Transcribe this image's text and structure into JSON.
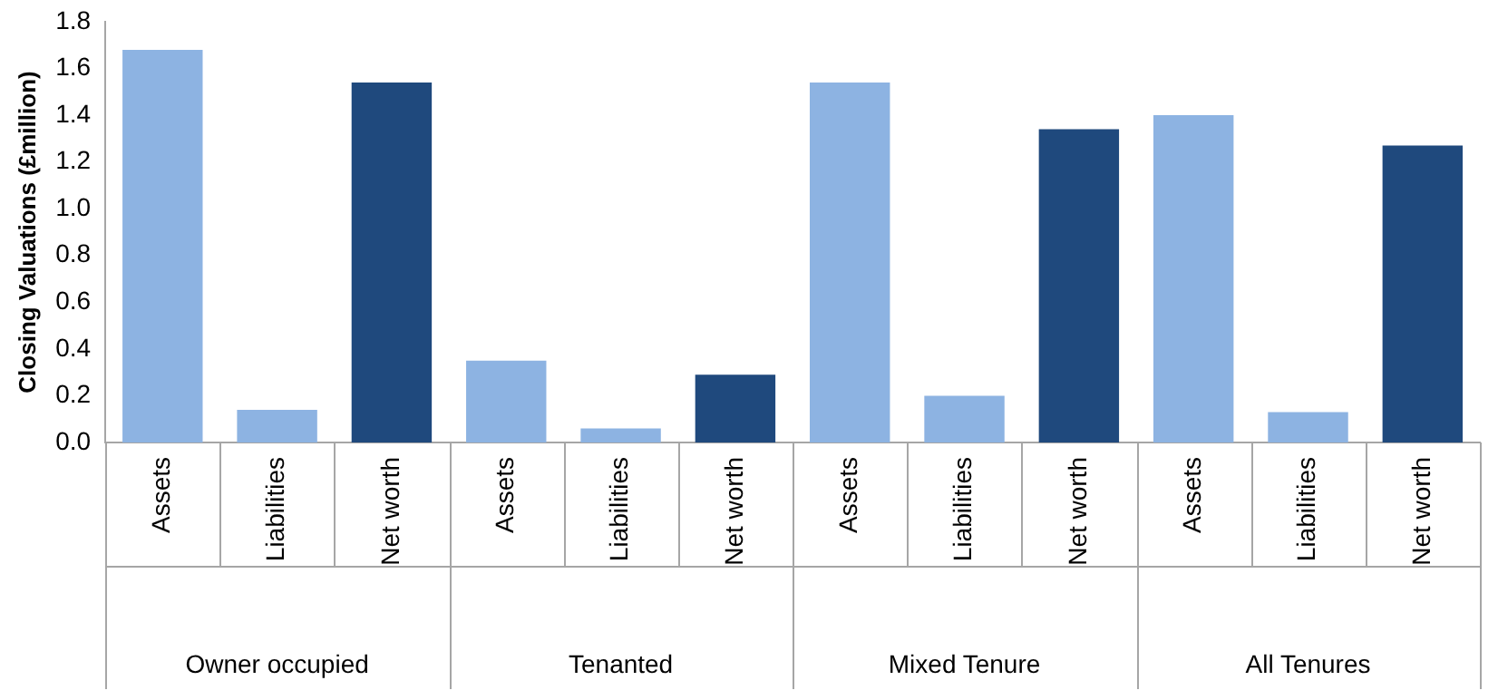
{
  "chart_data": {
    "type": "bar",
    "ylabel": "Closing Valuations (£million)",
    "categories": [
      "Assets",
      "Liabilities",
      "Net worth",
      "Assets",
      "Liabilities",
      "Net worth",
      "Assets",
      "Liabilities",
      "Net worth",
      "Assets",
      "Liabilities",
      "Net worth"
    ],
    "values": [
      1.68,
      0.14,
      1.54,
      0.35,
      0.06,
      0.29,
      1.54,
      0.2,
      1.34,
      1.4,
      0.13,
      1.27
    ],
    "colors": [
      "#8db3e2",
      "#8db3e2",
      "#1f497d",
      "#8db3e2",
      "#8db3e2",
      "#1f497d",
      "#8db3e2",
      "#8db3e2",
      "#1f497d",
      "#8db3e2",
      "#8db3e2",
      "#1f497d"
    ],
    "annotations": [
      "Owner occupied",
      "Tenanted",
      "Mixed Tenure",
      "All Tenures"
    ],
    "ylim": [
      0,
      1.8
    ],
    "yticks": [
      {
        "value": 0,
        "label": "0.0"
      },
      {
        "value": 0.2,
        "label": "0.2"
      },
      {
        "value": 0.4,
        "label": "0.4"
      },
      {
        "value": 0.6,
        "label": "0.6"
      },
      {
        "value": 0.8,
        "label": "0.8"
      },
      {
        "value": 1,
        "label": "1.0"
      },
      {
        "value": 1.2,
        "label": "1.2"
      },
      {
        "value": 1.4,
        "label": "1.4"
      },
      {
        "value": 1.6,
        "label": "1.6"
      },
      {
        "value": 1.8,
        "label": "1.8"
      }
    ],
    "grid": false,
    "legend": false
  }
}
